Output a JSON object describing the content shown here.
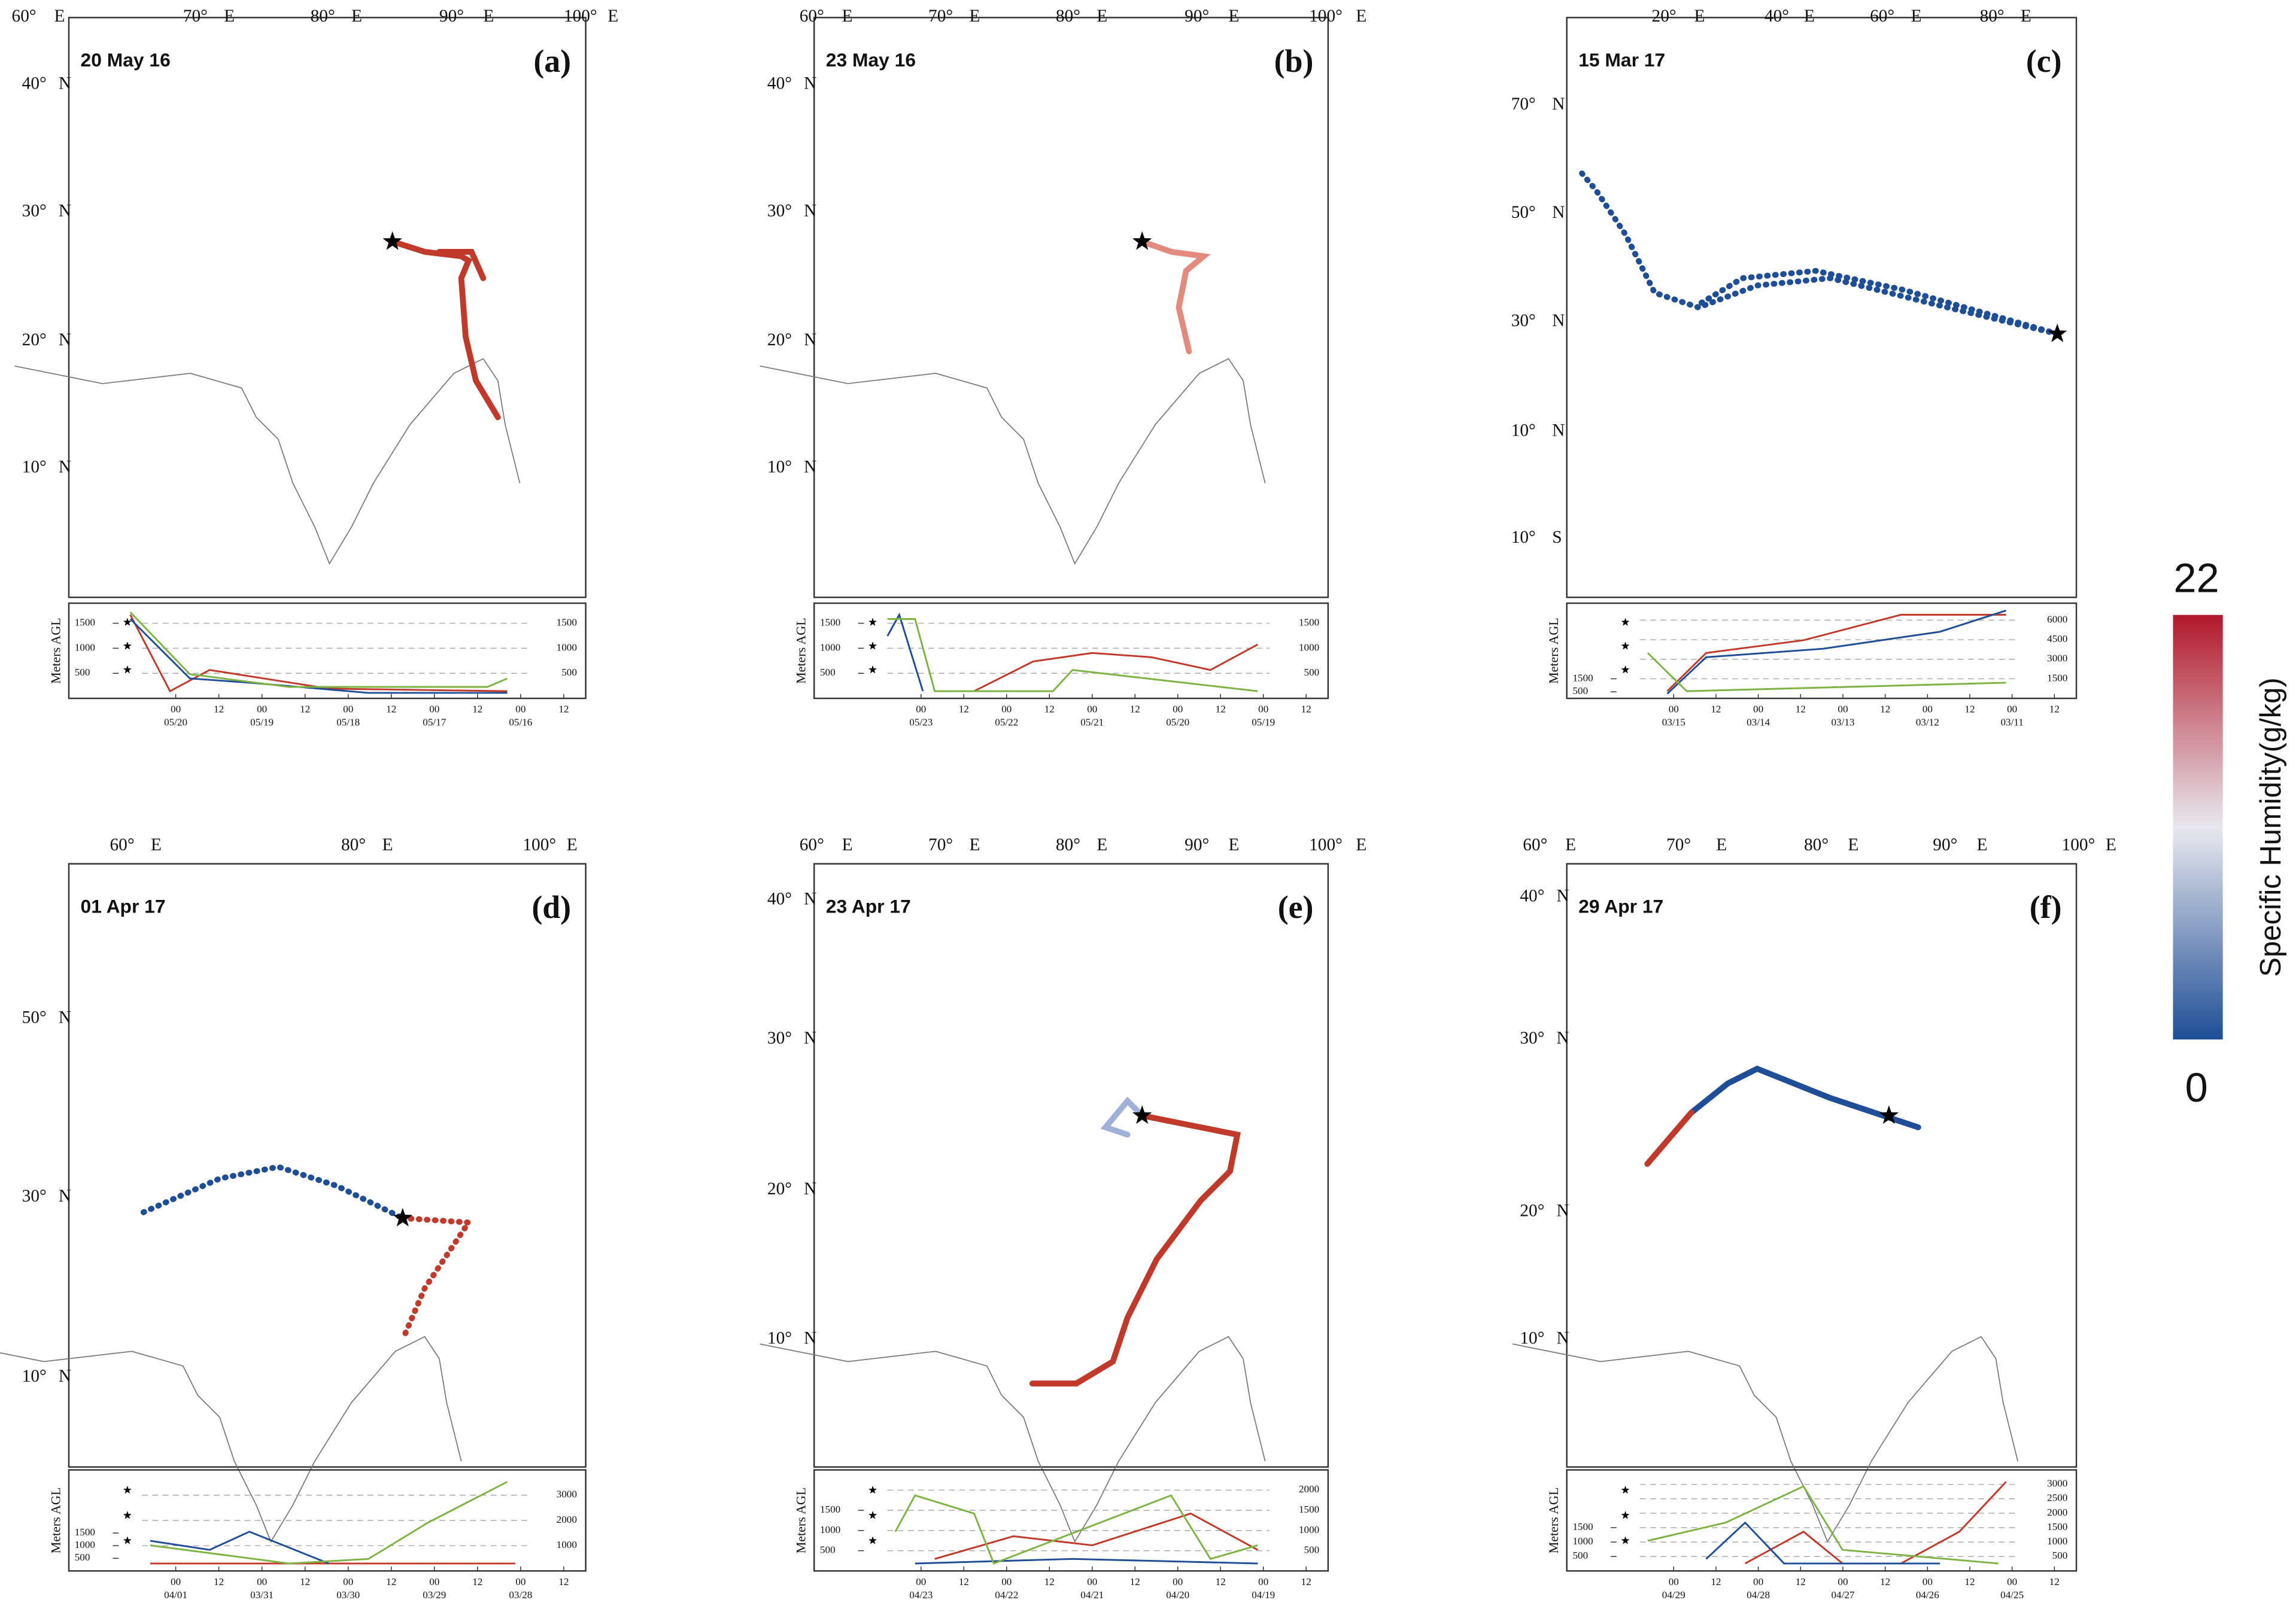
{
  "colorbar": {
    "max": "22",
    "min": "0",
    "title": "Specific Humidity(g/kg)"
  },
  "height_axis_label": "Meters AGL",
  "panels": [
    {
      "label": "(a)",
      "date": "20 May 16",
      "lon_ticks": [
        "60°",
        "E",
        "70°",
        "E",
        "80°",
        "E",
        "90°",
        "E",
        "100°",
        "E"
      ],
      "lat_ticks": [
        [
          "40°",
          "N"
        ],
        [
          "30°",
          "N"
        ],
        [
          "20°",
          "N"
        ],
        [
          "10°",
          "N"
        ]
      ],
      "height": {
        "ylim": [
          0,
          1900
        ],
        "yticks_left": [
          500,
          1000,
          1500
        ],
        "yticks_right": [
          500,
          1000,
          1500
        ],
        "hours": [
          "00",
          "12",
          "00",
          "12",
          "00",
          "12",
          "00",
          "12",
          "00",
          "12"
        ],
        "dates": [
          "05/20",
          "05/19",
          "05/18",
          "05/17",
          "05/16"
        ]
      }
    },
    {
      "label": "(b)",
      "date": "23 May 16",
      "lon_ticks": [
        "60°",
        "E",
        "70°",
        "E",
        "80°",
        "E",
        "90°",
        "E",
        "100°",
        "E"
      ],
      "lat_ticks": [
        [
          "40°",
          "N"
        ],
        [
          "30°",
          "N"
        ],
        [
          "20°",
          "N"
        ],
        [
          "10°",
          "N"
        ]
      ],
      "height": {
        "ylim": [
          0,
          1900
        ],
        "yticks_left": [
          500,
          1000,
          1500
        ],
        "yticks_right": [
          500,
          1000,
          1500
        ],
        "hours": [
          "00",
          "12",
          "00",
          "12",
          "00",
          "12",
          "00",
          "12",
          "00",
          "12"
        ],
        "dates": [
          "05/23",
          "05/22",
          "05/21",
          "05/20",
          "05/19"
        ]
      }
    },
    {
      "label": "(c)",
      "date": "15 Mar 17",
      "lon_ticks": [
        "20°",
        "E",
        "40°",
        "E",
        "60°",
        "E",
        "80°",
        "E"
      ],
      "lat_ticks": [
        [
          "70°",
          "N"
        ],
        [
          "50°",
          "N"
        ],
        [
          "30°",
          "N"
        ],
        [
          "10°",
          "N"
        ],
        [
          "10°",
          "S"
        ]
      ],
      "height": {
        "ylim": [
          0,
          7300
        ],
        "yticks_left": [
          500,
          1500
        ],
        "yticks_right": [
          1500,
          3000,
          4500,
          6000
        ],
        "hours": [
          "00",
          "12",
          "00",
          "12",
          "00",
          "12",
          "00",
          "12",
          "00",
          "12"
        ],
        "dates": [
          "03/15",
          "03/14",
          "03/13",
          "03/12",
          "03/11"
        ]
      }
    },
    {
      "label": "(d)",
      "date": "01 Apr 17",
      "lon_ticks": [
        "60°",
        "E",
        "80°",
        "E",
        "100°",
        "E"
      ],
      "lat_ticks": [
        [
          "50°",
          "N"
        ],
        [
          "30°",
          "N"
        ],
        [
          "10°",
          "N"
        ]
      ],
      "height": {
        "ylim": [
          0,
          4000
        ],
        "yticks_left": [
          500,
          1000,
          1500
        ],
        "yticks_right": [
          1000,
          2000,
          3000
        ],
        "hours": [
          "00",
          "12",
          "00",
          "12",
          "00",
          "12",
          "00",
          "12",
          "00",
          "12"
        ],
        "dates": [
          "04/01",
          "03/31",
          "03/30",
          "03/29",
          "03/28"
        ]
      }
    },
    {
      "label": "(e)",
      "date": "23 Apr 17",
      "lon_ticks": [
        "60°",
        "E",
        "70°",
        "E",
        "80°",
        "E",
        "90°",
        "E",
        "100°",
        "E"
      ],
      "lat_ticks": [
        [
          "40°",
          "N"
        ],
        [
          "30°",
          "N"
        ],
        [
          "20°",
          "N"
        ],
        [
          "10°",
          "N"
        ]
      ],
      "height": {
        "ylim": [
          0,
          2500
        ],
        "yticks_left": [
          500,
          1000,
          1500
        ],
        "yticks_right": [
          500,
          1000,
          1500,
          2000
        ],
        "hours": [
          "00",
          "12",
          "00",
          "12",
          "00",
          "12",
          "00",
          "12",
          "00",
          "12"
        ],
        "dates": [
          "04/23",
          "04/22",
          "04/21",
          "04/20",
          "04/19"
        ]
      }
    },
    {
      "label": "(f)",
      "date": "29 Apr 17",
      "lon_ticks": [
        "60°",
        "E",
        "70°",
        "E",
        "80°",
        "E",
        "90°",
        "E",
        "100°",
        "E"
      ],
      "lat_ticks": [
        [
          "40°",
          "N"
        ],
        [
          "30°",
          "N"
        ],
        [
          "20°",
          "N"
        ],
        [
          "10°",
          "N"
        ]
      ],
      "height": {
        "ylim": [
          0,
          3500
        ],
        "yticks_left": [
          500,
          1000,
          1500
        ],
        "yticks_right": [
          500,
          1000,
          1500,
          2000,
          2500,
          3000
        ],
        "hours": [
          "00",
          "12",
          "00",
          "12",
          "00",
          "12",
          "00",
          "12",
          "00",
          "12"
        ],
        "dates": [
          "04/29",
          "04/28",
          "04/27",
          "04/26",
          "04/25"
        ]
      }
    }
  ]
}
